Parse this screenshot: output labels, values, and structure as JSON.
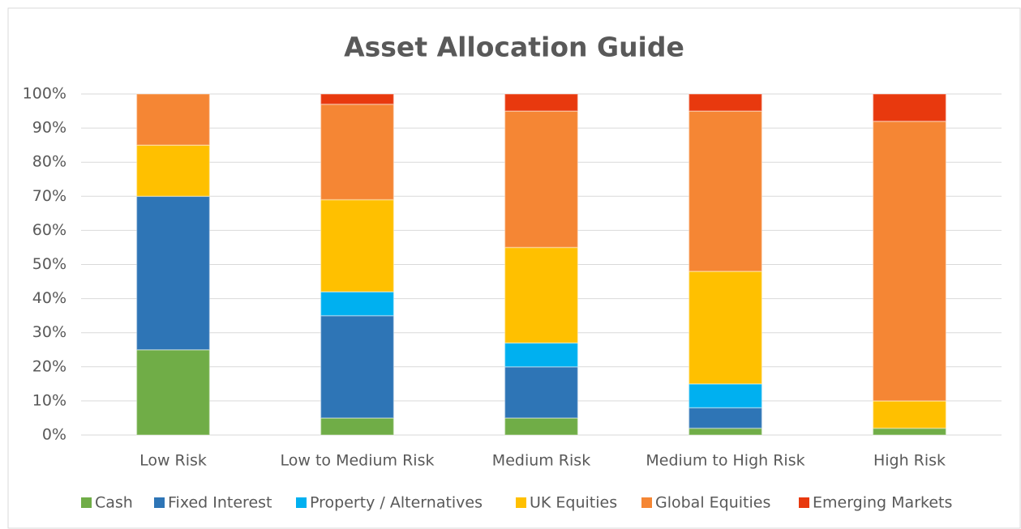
{
  "chart_data": {
    "type": "stacked_bar",
    "title": "Asset Allocation Guide",
    "categories": [
      "Low Risk",
      "Low to Medium Risk",
      "Medium Risk",
      "Medium to High Risk",
      "High Risk"
    ],
    "series": [
      {
        "name": "Cash",
        "color": "#70ad47",
        "values": [
          25,
          5,
          5,
          2,
          2
        ]
      },
      {
        "name": "Fixed Interest",
        "color": "#2e75b6",
        "values": [
          45,
          30,
          15,
          6,
          0
        ]
      },
      {
        "name": "Property / Alternatives",
        "color": "#00b0f0",
        "values": [
          0,
          7,
          7,
          7,
          0
        ]
      },
      {
        "name": "UK Equities",
        "color": "#ffc000",
        "values": [
          15,
          27,
          28,
          33,
          8
        ]
      },
      {
        "name": "Global Equities",
        "color": "#f58634",
        "values": [
          15,
          28,
          40,
          47,
          82
        ]
      },
      {
        "name": "Emerging Markets",
        "color": "#e8390e",
        "values": [
          0,
          3,
          5,
          5,
          8
        ]
      }
    ],
    "ylim": [
      0,
      100
    ],
    "yticks": [
      {
        "value": 0,
        "label": "0%"
      },
      {
        "value": 10,
        "label": "10%"
      },
      {
        "value": 20,
        "label": "20%"
      },
      {
        "value": 30,
        "label": "30%"
      },
      {
        "value": 40,
        "label": "40%"
      },
      {
        "value": 50,
        "label": "50%"
      },
      {
        "value": 60,
        "label": "60%"
      },
      {
        "value": 70,
        "label": "70%"
      },
      {
        "value": 80,
        "label": "80%"
      },
      {
        "value": 90,
        "label": "90%"
      },
      {
        "value": 100,
        "label": "100%"
      }
    ],
    "grid": true,
    "legend": "bottom"
  }
}
